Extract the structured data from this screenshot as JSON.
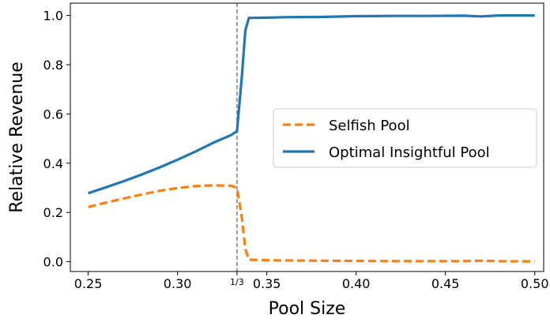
{
  "chart_data": {
    "type": "line",
    "xlabel": "Pool Size",
    "ylabel": "Relative Revenue",
    "xlim": [
      0.24,
      0.505
    ],
    "ylim": [
      -0.04,
      1.05
    ],
    "grid": false,
    "legend_position": "center-right",
    "x_ticks": [
      {
        "value": 0.25,
        "label": "0.25"
      },
      {
        "value": 0.3,
        "label": "0.30"
      },
      {
        "value": 0.3333,
        "label": "1/3"
      },
      {
        "value": 0.35,
        "label": "0.35"
      },
      {
        "value": 0.4,
        "label": "0.40"
      },
      {
        "value": 0.45,
        "label": "0.45"
      },
      {
        "value": 0.5,
        "label": "0.50"
      }
    ],
    "y_ticks": [
      {
        "value": 0.0,
        "label": "0.0"
      },
      {
        "value": 0.2,
        "label": "0.2"
      },
      {
        "value": 0.4,
        "label": "0.4"
      },
      {
        "value": 0.6,
        "label": "0.6"
      },
      {
        "value": 0.8,
        "label": "0.8"
      },
      {
        "value": 1.0,
        "label": "1.0"
      }
    ],
    "vline": {
      "x": 0.3333,
      "color": "#7f7f7f",
      "style": "dashed"
    },
    "series": [
      {
        "name": "Selfish Pool",
        "color": "#ff7f0e",
        "style": "dashed",
        "x": [
          0.25,
          0.26,
          0.27,
          0.28,
          0.29,
          0.3,
          0.31,
          0.32,
          0.33,
          0.3333,
          0.336,
          0.338,
          0.34,
          0.35,
          0.36,
          0.38,
          0.4,
          0.42,
          0.44,
          0.46,
          0.47,
          0.48,
          0.5
        ],
        "y": [
          0.222,
          0.24,
          0.257,
          0.273,
          0.288,
          0.299,
          0.307,
          0.31,
          0.308,
          0.3,
          0.18,
          0.05,
          0.008,
          0.006,
          0.005,
          0.004,
          0.003,
          0.002,
          0.002,
          0.002,
          0.004,
          0.002,
          0.001
        ]
      },
      {
        "name": "Optimal Insightful Pool",
        "color": "#1f77b4",
        "style": "solid",
        "x": [
          0.25,
          0.26,
          0.27,
          0.28,
          0.29,
          0.3,
          0.31,
          0.32,
          0.33,
          0.3333,
          0.336,
          0.338,
          0.34,
          0.35,
          0.36,
          0.38,
          0.4,
          0.42,
          0.44,
          0.46,
          0.47,
          0.48,
          0.5
        ],
        "y": [
          0.278,
          0.302,
          0.327,
          0.354,
          0.383,
          0.414,
          0.447,
          0.483,
          0.514,
          0.53,
          0.75,
          0.94,
          0.99,
          0.991,
          0.993,
          0.994,
          0.997,
          0.998,
          0.998,
          0.999,
          0.996,
          1.0,
          1.0
        ]
      }
    ]
  }
}
